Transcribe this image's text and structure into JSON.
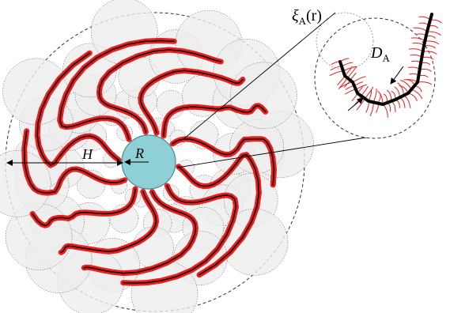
{
  "labels": {
    "H": "H",
    "R": "R",
    "D": "D",
    "D_sub": "A",
    "xi": "ξ",
    "xi_sub": "A",
    "xi_arg": "(r)"
  },
  "colors": {
    "shell_outline": "#333333",
    "blob_fill": "#eeeeee",
    "blob_outline": "#555555",
    "core_fill": "#8fd0d6",
    "core_outline": "#4c8e96",
    "chain_red": "#ee1c1c",
    "chain_black": "#000000"
  }
}
